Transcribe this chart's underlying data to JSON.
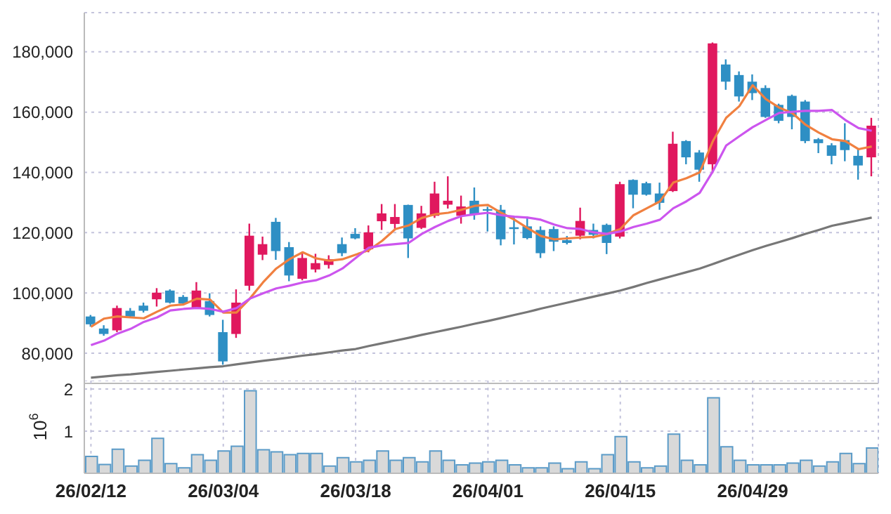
{
  "chart_data": [
    {
      "type": "candlestick",
      "categories": [
        null,
        null,
        null,
        null,
        null,
        null,
        null,
        null,
        null,
        null,
        null,
        null,
        null,
        null,
        null,
        null,
        null,
        null,
        null,
        null,
        null,
        null,
        null,
        null,
        null,
        null,
        null,
        null,
        null,
        null,
        null,
        null,
        null,
        null,
        null,
        null,
        null,
        null,
        null,
        null,
        null,
        null,
        null,
        null,
        null,
        null,
        null,
        null,
        null,
        null,
        null,
        null,
        null,
        null,
        null,
        null,
        null,
        null,
        null,
        null
      ],
      "ohlc": [
        [
          92200,
          92700,
          88800,
          89600
        ],
        [
          88200,
          89300,
          85800,
          86400
        ],
        [
          87600,
          95800,
          87000,
          95000
        ],
        [
          94100,
          95000,
          91800,
          92200
        ],
        [
          95800,
          96800,
          93500,
          94100
        ],
        [
          97900,
          101600,
          95500,
          100100
        ],
        [
          100800,
          101200,
          96500,
          96800
        ],
        [
          98700,
          99300,
          96100,
          96500
        ],
        [
          95000,
          103600,
          94700,
          100800
        ],
        [
          97300,
          99900,
          92200,
          92700
        ],
        [
          87000,
          91100,
          76200,
          77300
        ],
        [
          86400,
          101200,
          85100,
          96800
        ],
        [
          102400,
          123000,
          100800,
          119000
        ],
        [
          112700,
          118700,
          110900,
          116200
        ],
        [
          123600,
          124900,
          111000,
          113900
        ],
        [
          115200,
          116900,
          103900,
          105800
        ],
        [
          104700,
          113500,
          104200,
          111600
        ],
        [
          107800,
          113000,
          106800,
          109900
        ],
        [
          109300,
          112500,
          108100,
          111200
        ],
        [
          116200,
          118400,
          112200,
          113200
        ],
        [
          119600,
          121500,
          117800,
          118100
        ],
        [
          114500,
          122400,
          113500,
          120100
        ],
        [
          123800,
          129500,
          120900,
          126400
        ],
        [
          122900,
          129500,
          121200,
          125200
        ],
        [
          129200,
          129300,
          111600,
          118100
        ],
        [
          121600,
          128900,
          121200,
          126400
        ],
        [
          125600,
          136900,
          124900,
          133000
        ],
        [
          129300,
          138700,
          128000,
          130600
        ],
        [
          125600,
          132300,
          123000,
          128700
        ],
        [
          130600,
          135000,
          124300,
          126100
        ],
        [
          127800,
          128600,
          120400,
          127300
        ],
        [
          127600,
          129200,
          115800,
          117800
        ],
        [
          121800,
          125300,
          116100,
          121200
        ],
        [
          122100,
          125300,
          117800,
          118200
        ],
        [
          120900,
          122100,
          111600,
          113200
        ],
        [
          121200,
          122100,
          113900,
          117000
        ],
        [
          117500,
          118900,
          116100,
          116600
        ],
        [
          119000,
          128300,
          117800,
          123900
        ],
        [
          120900,
          123000,
          118100,
          119300
        ],
        [
          122600,
          123000,
          112900,
          116600
        ],
        [
          118700,
          136900,
          118100,
          136100
        ],
        [
          137500,
          137700,
          128100,
          132600
        ],
        [
          136400,
          136900,
          132300,
          132600
        ],
        [
          133000,
          136600,
          127600,
          129900
        ],
        [
          133800,
          153500,
          133500,
          149500
        ],
        [
          150400,
          150700,
          142700,
          145000
        ],
        [
          146600,
          147400,
          136900,
          140900
        ],
        [
          142700,
          183100,
          139700,
          182800
        ],
        [
          175800,
          177500,
          167400,
          170100
        ],
        [
          172300,
          173500,
          163500,
          165200
        ],
        [
          170100,
          172500,
          164000,
          166300
        ],
        [
          168000,
          168900,
          158100,
          158400
        ],
        [
          162400,
          162800,
          156300,
          157100
        ],
        [
          165400,
          165800,
          154300,
          158400
        ],
        [
          163500,
          164000,
          149700,
          150400
        ],
        [
          151000,
          151400,
          146400,
          149700
        ],
        [
          149000,
          149700,
          142700,
          145500
        ],
        [
          150700,
          156300,
          143700,
          147400
        ],
        [
          145500,
          147700,
          137600,
          142300
        ],
        [
          145000,
          158100,
          138700,
          155500
        ]
      ],
      "colors": [
        "#2e8fc4",
        "#2e8fc4",
        "#e0185e",
        "#2e8fc4",
        "#2e8fc4",
        "#e0185e",
        "#2e8fc4",
        "#2e8fc4",
        "#e0185e",
        "#2e8fc4",
        "#2e8fc4",
        "#e0185e",
        "#e0185e",
        "#e0185e",
        "#2e8fc4",
        "#2e8fc4",
        "#e0185e",
        "#e0185e",
        "#e0185e",
        "#2e8fc4",
        "#2e8fc4",
        "#e0185e",
        "#e0185e",
        "#e0185e",
        "#2e8fc4",
        "#e0185e",
        "#e0185e",
        "#e0185e",
        "#e0185e",
        "#2e8fc4",
        "#2e8fc4",
        "#2e8fc4",
        "#2e8fc4",
        "#2e8fc4",
        "#2e8fc4",
        "#2e8fc4",
        "#2e8fc4",
        "#e0185e",
        "#2e8fc4",
        "#2e8fc4",
        "#e0185e",
        "#2e8fc4",
        "#2e8fc4",
        "#2e8fc4",
        "#e0185e",
        "#2e8fc4",
        "#2e8fc4",
        "#e0185e",
        "#2e8fc4",
        "#2e8fc4",
        "#2e8fc4",
        "#2e8fc4",
        "#2e8fc4",
        "#2e8fc4",
        "#2e8fc4",
        "#2e8fc4",
        "#2e8fc4",
        "#2e8fc4",
        "#2e8fc4",
        "#e0185e"
      ],
      "series": [
        {
          "type": "line",
          "color": "#f08040",
          "values": [
            88800,
            91500,
            92200,
            91900,
            91600,
            93800,
            95800,
            96200,
            98100,
            97800,
            93500,
            93500,
            98100,
            103500,
            108100,
            111200,
            113500,
            111500,
            110700,
            111200,
            112700,
            114200,
            117300,
            121200,
            122400,
            124900,
            126100,
            126600,
            127600,
            128900,
            129200,
            126600,
            124300,
            121500,
            118900,
            117800,
            118100,
            118400,
            118600,
            119600,
            121200,
            125800,
            128100,
            130400,
            136600,
            138100,
            140000,
            150400,
            158100,
            162000,
            168900,
            164300,
            161500,
            159700,
            155800,
            153200,
            151000,
            150400,
            147700,
            148600
          ]
        },
        {
          "type": "line",
          "color": "#cc55ee",
          "values": [
            82700,
            84200,
            86500,
            88100,
            90400,
            91900,
            94200,
            94700,
            95000,
            94700,
            93800,
            95000,
            98100,
            99900,
            101500,
            102400,
            103500,
            104200,
            105800,
            108100,
            111600,
            115000,
            115800,
            116200,
            116600,
            119600,
            121900,
            123900,
            125500,
            126100,
            126600,
            125800,
            125300,
            125000,
            124300,
            122700,
            121500,
            121200,
            120100,
            119600,
            120400,
            121900,
            123000,
            124300,
            128100,
            130400,
            133200,
            140400,
            148900,
            152000,
            155000,
            157400,
            159700,
            160100,
            160400,
            160400,
            160700,
            157400,
            154700,
            153800
          ]
        },
        {
          "type": "line",
          "color": "#777777",
          "values": [
            71900,
            72300,
            72700,
            73000,
            73400,
            73800,
            74200,
            74600,
            75000,
            75400,
            75700,
            76300,
            76900,
            77500,
            78000,
            78600,
            79200,
            79700,
            80300,
            80900,
            81400,
            82400,
            83300,
            84200,
            85100,
            86100,
            87000,
            87900,
            88800,
            89800,
            90700,
            91700,
            92700,
            93700,
            94800,
            95800,
            96800,
            97800,
            98800,
            99800,
            100800,
            102000,
            103300,
            104500,
            105700,
            106900,
            108100,
            109600,
            111200,
            112700,
            114200,
            115600,
            116900,
            118200,
            119600,
            120900,
            122300,
            123200,
            124100,
            125000
          ]
        }
      ],
      "ylim": [
        70000,
        193000
      ],
      "yticks": [
        {
          "value": 80000,
          "label": "80,000"
        },
        {
          "value": 100000,
          "label": "100,000"
        },
        {
          "value": 120000,
          "label": "120,000"
        },
        {
          "value": 140000,
          "label": "140,000"
        },
        {
          "value": 160000,
          "label": "160,000"
        },
        {
          "value": 180000,
          "label": "180,000"
        }
      ],
      "grid": true,
      "tick_labels": "y"
    },
    {
      "type": "bar",
      "categories": [
        "26/02/12",
        null,
        null,
        null,
        null,
        null,
        null,
        null,
        null,
        null,
        "26/03/04",
        null,
        null,
        null,
        null,
        null,
        null,
        null,
        null,
        null,
        "26/03/18",
        null,
        null,
        null,
        null,
        null,
        null,
        null,
        null,
        null,
        "26/04/01",
        null,
        null,
        null,
        null,
        null,
        null,
        null,
        null,
        null,
        "26/04/15",
        null,
        null,
        null,
        null,
        null,
        null,
        null,
        null,
        null,
        "26/04/29",
        null,
        null,
        null,
        null,
        null,
        null,
        null,
        null,
        null
      ],
      "values": [
        0.4,
        0.21,
        0.57,
        0.17,
        0.31,
        0.83,
        0.23,
        0.13,
        0.44,
        0.31,
        0.53,
        0.64,
        1.96,
        0.56,
        0.51,
        0.44,
        0.47,
        0.47,
        0.17,
        0.37,
        0.27,
        0.31,
        0.53,
        0.31,
        0.37,
        0.27,
        0.53,
        0.31,
        0.2,
        0.24,
        0.27,
        0.31,
        0.2,
        0.13,
        0.13,
        0.24,
        0.11,
        0.27,
        0.11,
        0.44,
        0.87,
        0.27,
        0.13,
        0.17,
        0.93,
        0.31,
        0.2,
        1.79,
        0.63,
        0.31,
        0.2,
        0.2,
        0.2,
        0.24,
        0.31,
        0.17,
        0.27,
        0.47,
        0.23,
        0.6
      ],
      "color": "#d9d9d9",
      "ylabel": "10$^{6}$",
      "ylim": [
        0,
        2.2
      ],
      "yticks": [
        1,
        2
      ],
      "grid": true
    }
  ]
}
